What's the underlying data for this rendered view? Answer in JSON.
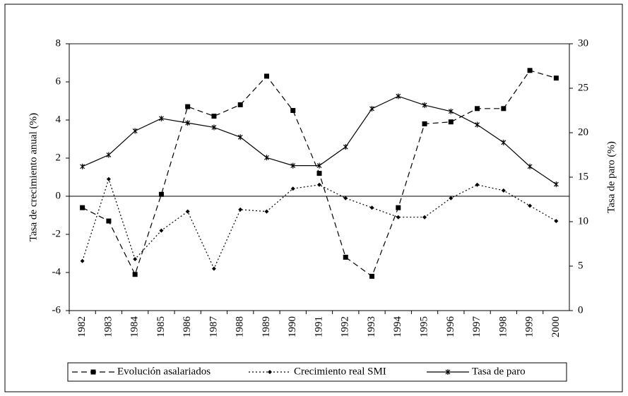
{
  "chart_data": {
    "type": "line",
    "y_label": "Tasa de crecimiento anual (%)",
    "y2_label": "Tasa de paro (%)",
    "categories": [
      "1982",
      "1983",
      "1984",
      "1985",
      "1986",
      "1987",
      "1988",
      "1989",
      "1990",
      "1991",
      "1992",
      "1993",
      "1994",
      "1995",
      "1996",
      "1997",
      "1998",
      "1999",
      "2000"
    ],
    "series": [
      {
        "name": "Evolución asalariados",
        "color": "#000000",
        "dash": "8,5",
        "marker": "square",
        "values": [
          -0.6,
          -1.3,
          -4.1,
          0.1,
          4.7,
          4.2,
          4.8,
          6.3,
          4.5,
          1.2,
          -3.2,
          -4.2,
          -0.6,
          3.8,
          3.9,
          4.6,
          4.6,
          6.6,
          6.2
        ]
      },
      {
        "name": "Crecimiento real SMI",
        "color": "#000000",
        "dash": "2,3",
        "marker": "diamond",
        "values": [
          -3.4,
          0.9,
          -3.3,
          -1.8,
          -0.8,
          -3.8,
          -0.7,
          -0.8,
          0.4,
          0.6,
          -0.1,
          -0.6,
          -1.1,
          -1.1,
          -0.1,
          0.6,
          0.3,
          -0.5,
          -1.3
        ]
      },
      {
        "name": "Tasa de paro",
        "color": "#000000",
        "dash": "",
        "marker": "star",
        "axis": "y2",
        "values": [
          16.2,
          17.5,
          20.2,
          21.6,
          21.1,
          20.6,
          19.5,
          17.2,
          16.3,
          16.3,
          18.4,
          22.7,
          24.1,
          23.1,
          22.4,
          20.9,
          18.9,
          16.2,
          14.2
        ]
      }
    ],
    "ylim": [
      -6,
      8
    ],
    "yticks": [
      -6,
      -4,
      -2,
      0,
      2,
      4,
      6,
      8
    ],
    "y2lim": [
      0,
      30
    ],
    "y2ticks": [
      0,
      5,
      10,
      15,
      20,
      25,
      30
    ],
    "legend": "bottom"
  }
}
